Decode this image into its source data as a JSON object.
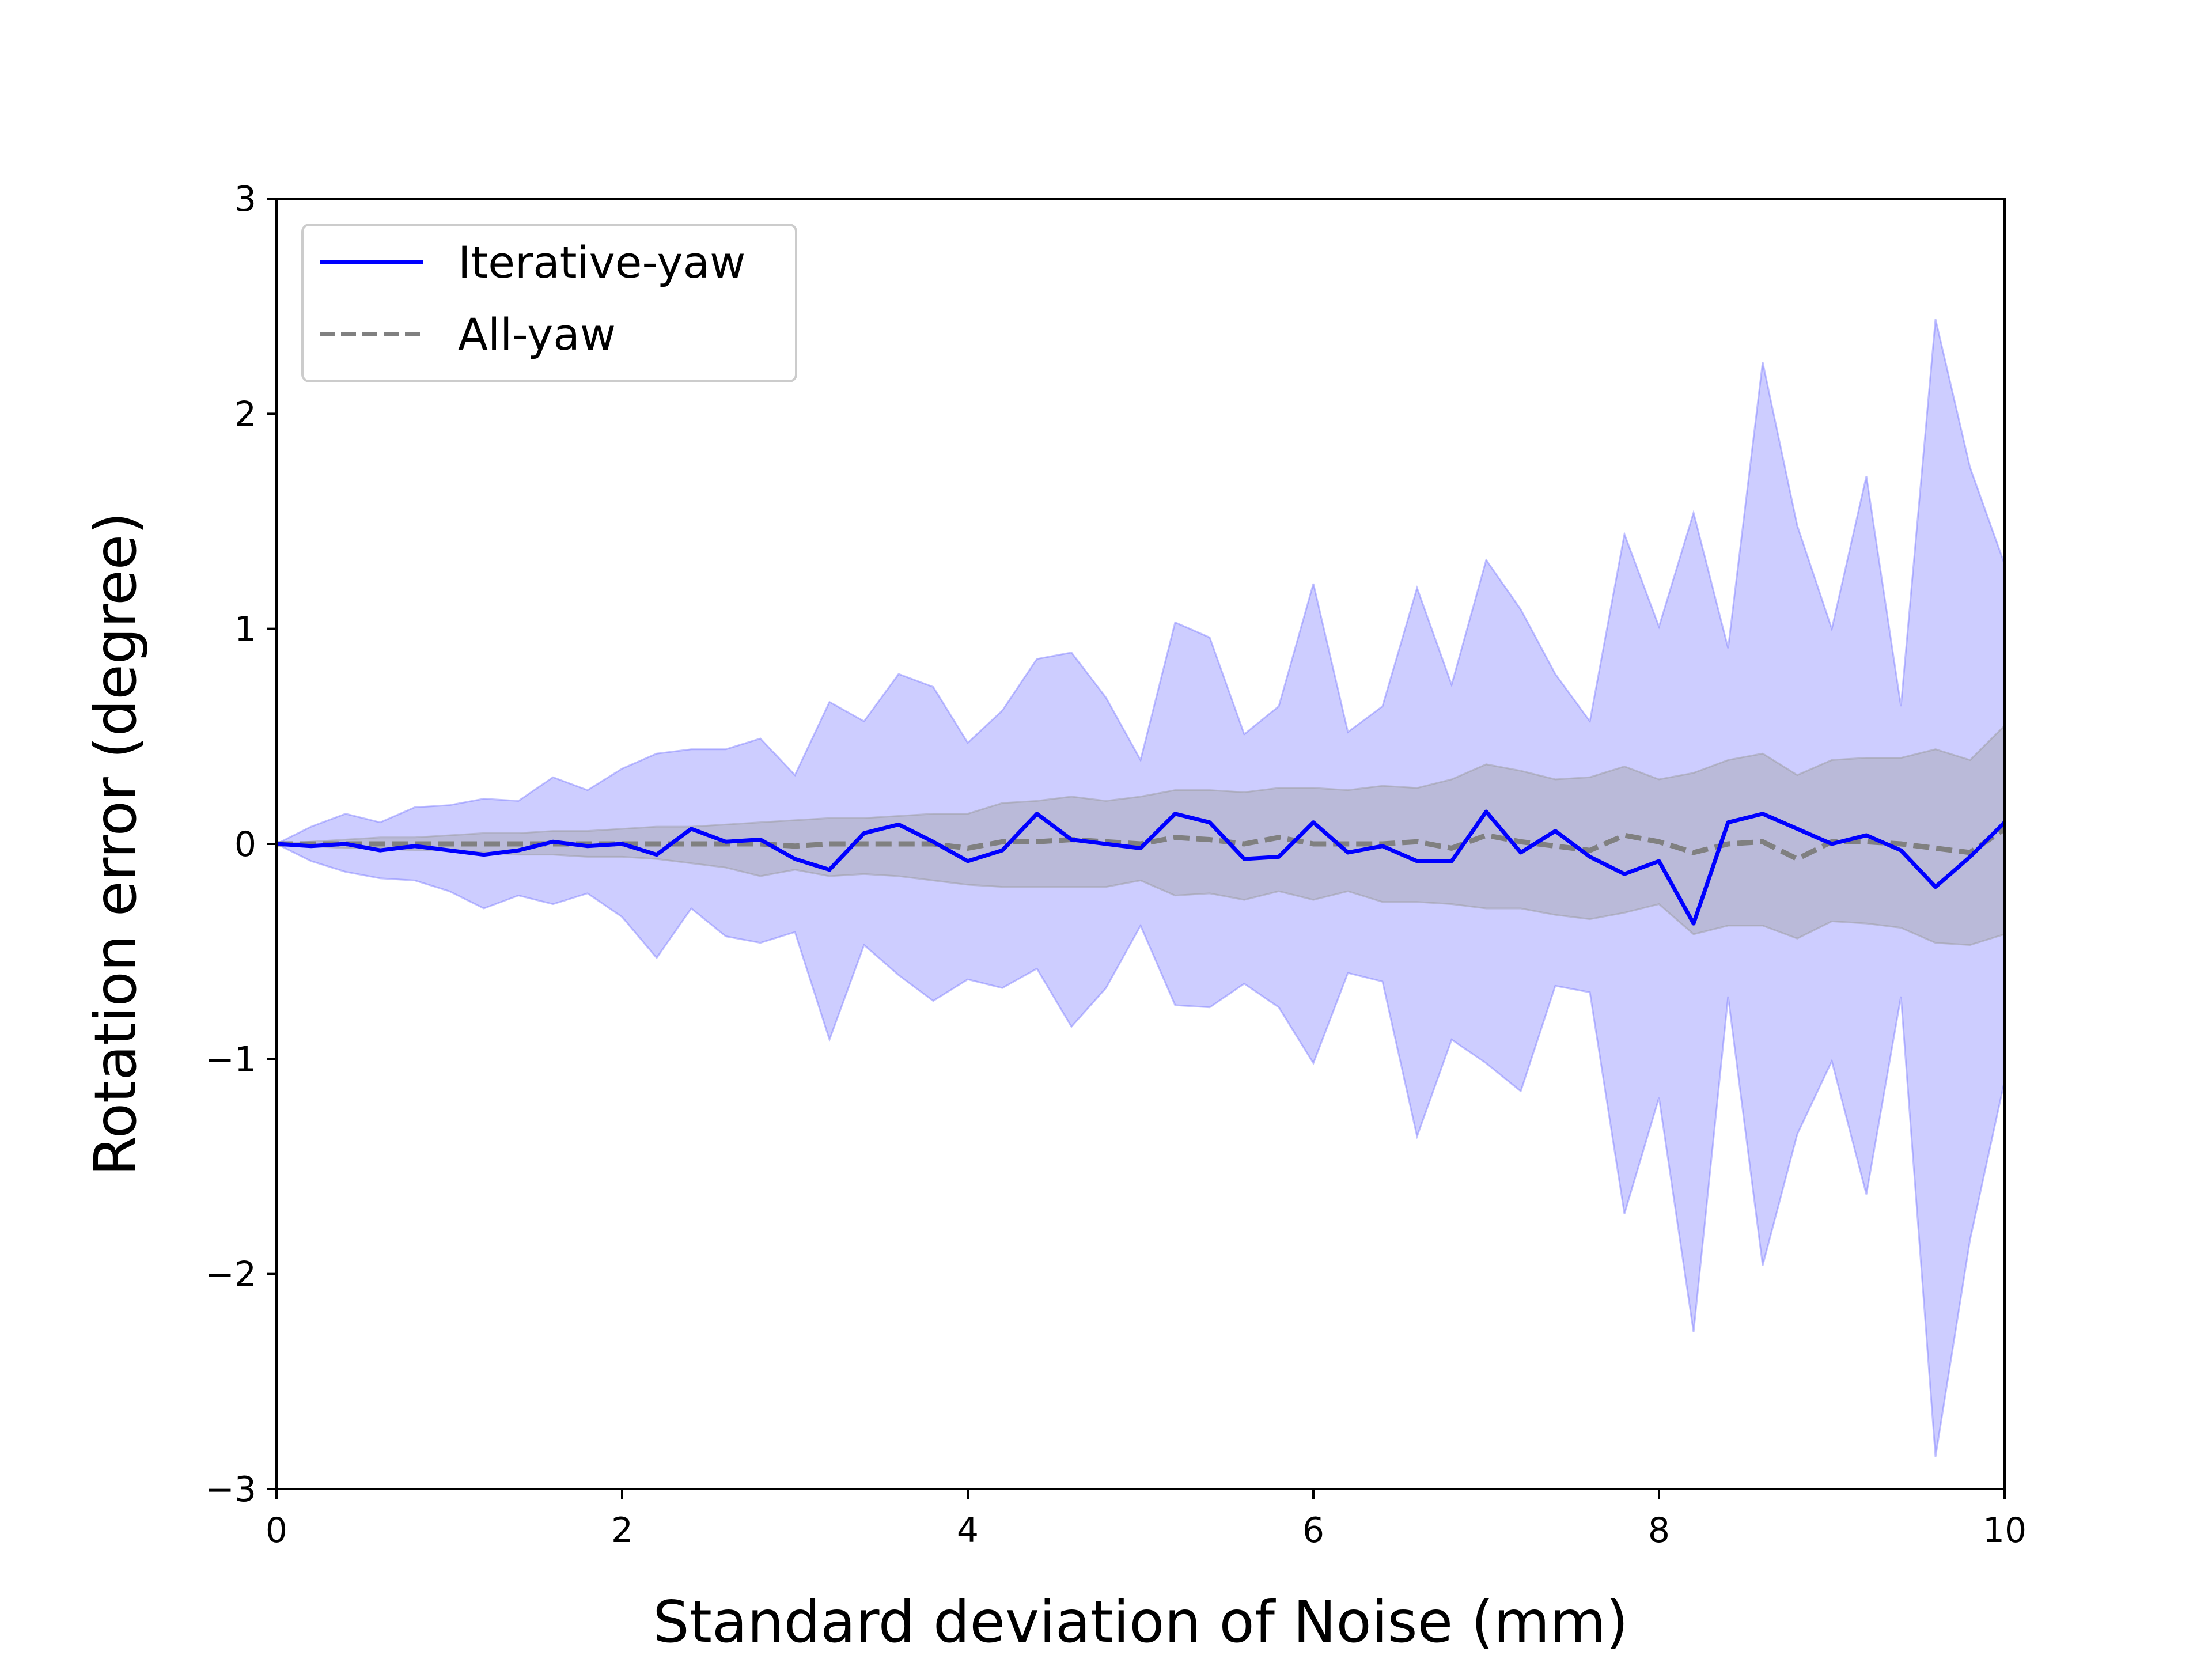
{
  "chart_data": {
    "type": "line",
    "xlabel": "Standard deviation of Noise (mm)",
    "ylabel": "Rotation error (degree)",
    "xlim": [
      0,
      10
    ],
    "ylim": [
      -3,
      3
    ],
    "xticks": [
      0,
      2,
      4,
      6,
      8,
      10
    ],
    "xtick_labels": [
      "0",
      "2",
      "4",
      "6",
      "8",
      "10"
    ],
    "yticks": [
      -3,
      -2,
      -1,
      0,
      1,
      2,
      3
    ],
    "ytick_labels": [
      "−3",
      "−2",
      "−1",
      "0",
      "1",
      "2",
      "3"
    ],
    "grid": false,
    "legend_position": "upper-left",
    "x": [
      0,
      0.2,
      0.4,
      0.6,
      0.8,
      1.0,
      1.2,
      1.4,
      1.6,
      1.8,
      2.0,
      2.2,
      2.4,
      2.6,
      2.8,
      3.0,
      3.2,
      3.4,
      3.6,
      3.8,
      4.0,
      4.2,
      4.4,
      4.6,
      4.8,
      5.0,
      5.2,
      5.4,
      5.6,
      5.8,
      6.0,
      6.2,
      6.4,
      6.6,
      6.8,
      7.0,
      7.2,
      7.4,
      7.6,
      7.8,
      8.0,
      8.2,
      8.4,
      8.6,
      8.8,
      9.0,
      9.2,
      9.4,
      9.6,
      9.8,
      10.0
    ],
    "series": [
      {
        "name": "Iterative-yaw",
        "color": "#0000ff",
        "style": "solid",
        "values": [
          0,
          -0.01,
          0,
          -0.03,
          -0.01,
          -0.03,
          -0.05,
          -0.03,
          0.01,
          -0.01,
          0,
          -0.05,
          0.07,
          0.01,
          0.02,
          -0.07,
          -0.12,
          0.05,
          0.09,
          0.01,
          -0.08,
          -0.03,
          0.14,
          0.02,
          0,
          -0.02,
          0.14,
          0.1,
          -0.07,
          -0.06,
          0.1,
          -0.04,
          -0.01,
          -0.08,
          -0.08,
          0.15,
          -0.04,
          0.06,
          -0.06,
          -0.14,
          -0.08,
          -0.37,
          0.1,
          0.14,
          0.07,
          0,
          0.04,
          -0.03,
          -0.2,
          -0.06,
          0.1
        ],
        "band": {
          "color": "#7b7bff",
          "upper": [
            0,
            0.08,
            0.14,
            0.1,
            0.17,
            0.18,
            0.21,
            0.2,
            0.31,
            0.25,
            0.35,
            0.42,
            0.44,
            0.44,
            0.49,
            0.32,
            0.66,
            0.57,
            0.79,
            0.73,
            0.47,
            0.62,
            0.86,
            0.89,
            0.68,
            0.39,
            1.03,
            0.96,
            0.51,
            0.64,
            1.21,
            0.52,
            0.64,
            1.19,
            0.74,
            1.32,
            1.09,
            0.79,
            0.57,
            1.44,
            1.01,
            1.54,
            0.91,
            2.24,
            1.48,
            1.0,
            1.71,
            0.64,
            2.44,
            1.75,
            1.3
          ],
          "lower": [
            0,
            -0.08,
            -0.13,
            -0.16,
            -0.17,
            -0.22,
            -0.3,
            -0.24,
            -0.28,
            -0.23,
            -0.34,
            -0.53,
            -0.3,
            -0.43,
            -0.46,
            -0.41,
            -0.91,
            -0.47,
            -0.61,
            -0.73,
            -0.63,
            -0.67,
            -0.58,
            -0.85,
            -0.67,
            -0.38,
            -0.75,
            -0.76,
            -0.65,
            -0.76,
            -1.02,
            -0.6,
            -0.64,
            -1.36,
            -0.91,
            -1.02,
            -1.15,
            -0.66,
            -0.69,
            -1.72,
            -1.18,
            -2.27,
            -0.71,
            -1.96,
            -1.35,
            -1.01,
            -1.63,
            -0.71,
            -2.85,
            -1.84,
            -1.1
          ]
        }
      },
      {
        "name": "All-yaw",
        "color": "#808080",
        "style": "dashed",
        "values": [
          0,
          0,
          0,
          0,
          0,
          0,
          0,
          0,
          0,
          0,
          0,
          0,
          0,
          0,
          0,
          -0.01,
          0,
          0,
          0,
          0,
          -0.02,
          0.01,
          0.01,
          0.02,
          0.01,
          0,
          0.03,
          0.02,
          0,
          0.03,
          0,
          0,
          0,
          0.01,
          -0.02,
          0.04,
          0.01,
          -0.01,
          -0.03,
          0.04,
          0.01,
          -0.04,
          0,
          0.01,
          -0.07,
          0.01,
          0.01,
          0,
          -0.02,
          -0.04,
          0.07
        ],
        "band": {
          "color": "#9a9a9a",
          "upper": [
            0,
            0.01,
            0.02,
            0.03,
            0.03,
            0.04,
            0.05,
            0.05,
            0.06,
            0.06,
            0.07,
            0.08,
            0.08,
            0.09,
            0.1,
            0.11,
            0.12,
            0.12,
            0.13,
            0.14,
            0.14,
            0.19,
            0.2,
            0.22,
            0.2,
            0.22,
            0.25,
            0.25,
            0.24,
            0.26,
            0.26,
            0.25,
            0.27,
            0.26,
            0.3,
            0.37,
            0.34,
            0.3,
            0.31,
            0.36,
            0.3,
            0.33,
            0.39,
            0.42,
            0.32,
            0.39,
            0.4,
            0.4,
            0.44,
            0.39,
            0.55
          ],
          "lower": [
            0,
            -0.01,
            -0.02,
            -0.02,
            -0.03,
            -0.03,
            -0.04,
            -0.05,
            -0.05,
            -0.06,
            -0.06,
            -0.07,
            -0.09,
            -0.11,
            -0.15,
            -0.12,
            -0.15,
            -0.14,
            -0.15,
            -0.17,
            -0.19,
            -0.2,
            -0.2,
            -0.2,
            -0.2,
            -0.17,
            -0.24,
            -0.23,
            -0.26,
            -0.22,
            -0.26,
            -0.22,
            -0.27,
            -0.27,
            -0.28,
            -0.3,
            -0.3,
            -0.33,
            -0.35,
            -0.32,
            -0.28,
            -0.42,
            -0.38,
            -0.38,
            -0.44,
            -0.36,
            -0.37,
            -0.39,
            -0.46,
            -0.47,
            -0.42
          ]
        }
      }
    ]
  }
}
